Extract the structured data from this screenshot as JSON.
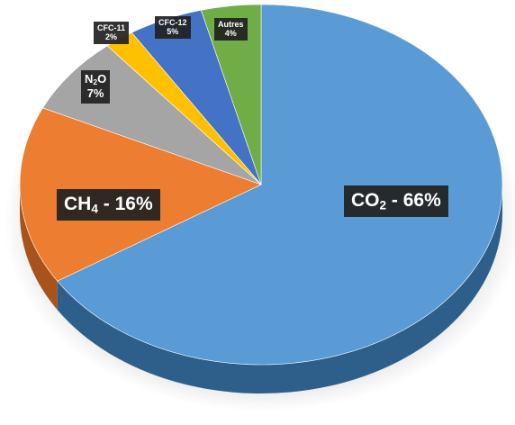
{
  "chart_data": {
    "type": "pie",
    "style": "3d",
    "slices": [
      {
        "name": "CO2",
        "value": 66,
        "color": "#5b9bd5",
        "side_color": "#2e5f8a",
        "label": "- 66%"
      },
      {
        "name": "CH4",
        "value": 16,
        "color": "#ed7d31",
        "side_color": "#a8531c",
        "label": "- 16%"
      },
      {
        "name": "N2O",
        "value": 7,
        "color": "#a5a5a5",
        "side_color": "#6e6e6e",
        "label": "7%"
      },
      {
        "name": "CFC-11",
        "value": 2,
        "color": "#ffc000",
        "side_color": "#b38600",
        "label": "2%"
      },
      {
        "name": "CFC-12",
        "value": 5,
        "color": "#4472c4",
        "side_color": "#2a4a85",
        "label": "5%"
      },
      {
        "name": "Autres",
        "value": 4,
        "color": "#70ad47",
        "side_color": "#4a7a2d",
        "label": "4%"
      }
    ],
    "texts": {
      "co2_main": "CO",
      "co2_sub": "2",
      "co2_pct": " - 66%",
      "ch4_main": "CH",
      "ch4_sub": "4",
      "ch4_pct": " - 16%",
      "n2o_a": "N",
      "n2o_sub": "2",
      "n2o_b": "O",
      "n2o_pct": "7%",
      "cfc11_name": "CFC-11",
      "cfc11_pct": "2%",
      "cfc12_name": "CFC-12",
      "cfc12_pct": "5%",
      "autres_name": "Autres",
      "autres_pct": "4%"
    }
  }
}
